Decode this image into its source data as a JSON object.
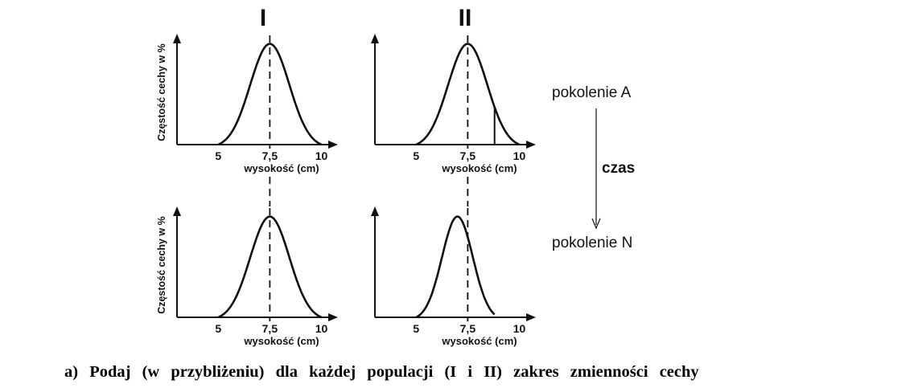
{
  "column_headers": [
    "I",
    "II"
  ],
  "side_labels": {
    "generation_a": "pokolenie A",
    "time": "czas",
    "generation_n": "pokolenie N"
  },
  "question": "a) Podaj (w przybliżeniu) dla każdej populacji (I i II) zakres zmienności cechy",
  "chart_data": [
    {
      "type": "line",
      "population": "I",
      "generation": "A",
      "xlabel": "wysokość (cm)",
      "ylabel": "Częstość cechy w %",
      "x_ticks": [
        "5",
        "7,5",
        "10"
      ],
      "xlim": [
        3,
        10.8
      ],
      "ylim": [
        0,
        1.1
      ],
      "curve": {
        "mean": 7.5,
        "sd": 0.95,
        "range": [
          5,
          10
        ]
      },
      "mean_line": 7.5,
      "mean_line_label": "",
      "cutoff": null
    },
    {
      "type": "line",
      "population": "II",
      "generation": "A",
      "xlabel": "wysokość (cm)",
      "ylabel": "",
      "x_ticks": [
        "5",
        "7,5",
        "10"
      ],
      "xlim": [
        3,
        10.8
      ],
      "ylim": [
        0,
        1.1
      ],
      "curve": {
        "mean": 7.5,
        "sd": 0.95,
        "range": [
          5,
          10
        ]
      },
      "mean_line": 7.5,
      "cutoff": 8.8
    },
    {
      "type": "line",
      "population": "I",
      "generation": "N",
      "xlabel": "wysokość (cm)",
      "ylabel": "Częstość cechy w %",
      "x_ticks": [
        "5",
        "7,5",
        "10"
      ],
      "xlim": [
        3,
        10.8
      ],
      "ylim": [
        0,
        1.1
      ],
      "curve": {
        "mean": 7.5,
        "sd": 0.95,
        "range": [
          5,
          10
        ]
      },
      "mean_line": 7.5,
      "cutoff": null
    },
    {
      "type": "line",
      "population": "II",
      "generation": "N",
      "xlabel": "wysokość (cm)",
      "ylabel": "",
      "x_ticks": [
        "5",
        "7,5",
        "10"
      ],
      "xlim": [
        3,
        10.8
      ],
      "ylim": [
        0,
        1.1
      ],
      "curve": {
        "mean": 7.0,
        "sd": 0.75,
        "range": [
          5,
          8.8
        ]
      },
      "mean_line": 7.5,
      "cutoff": null
    }
  ],
  "colors": {
    "ink": "#111111"
  }
}
